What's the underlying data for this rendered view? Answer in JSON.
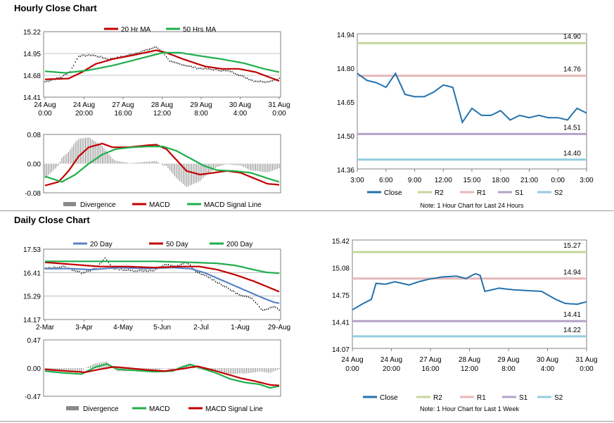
{
  "sections": {
    "hourly_title": "Hourly Close Chart",
    "daily_title": "Daily Close Chart"
  },
  "colors": {
    "black": "#000000",
    "red": "#c00000",
    "green": "#1fae4b",
    "blue": "#5a82c8",
    "close_blue": "#2472ad",
    "grey": "#8a8a8a",
    "r2": "#c4d79b",
    "r1": "#e6b8b7",
    "s1": "#b3a2c7",
    "s2": "#93cddd"
  },
  "chart_data": [
    {
      "id": "hourly-price",
      "type": "line",
      "title": "",
      "ylim": [
        14.41,
        15.22
      ],
      "yticks": [
        "15.22",
        "14.95",
        "14.68",
        "14.41"
      ],
      "xticks": [
        [
          "24 Aug",
          "0:00"
        ],
        [
          "24 Aug",
          "20:00"
        ],
        [
          "27 Aug",
          "16:00"
        ],
        [
          "28 Aug",
          "12:00"
        ],
        [
          "29 Aug",
          "8:00"
        ],
        [
          "30 Aug",
          "4:00"
        ],
        [
          "31 Aug",
          "0:00"
        ]
      ],
      "n_points": 140,
      "legend": [
        "20 Hr MA",
        "50 Hrs MA"
      ],
      "series": [
        {
          "name": "Close",
          "color": "#000000",
          "style": "bar",
          "anchors": [
            [
              0,
              14.6
            ],
            [
              10,
              14.66
            ],
            [
              15,
              14.73
            ],
            [
              20,
              14.92
            ],
            [
              28,
              14.93
            ],
            [
              38,
              14.88
            ],
            [
              48,
              14.92
            ],
            [
              60,
              14.99
            ],
            [
              66,
              15.03
            ],
            [
              70,
              14.97
            ],
            [
              74,
              14.85
            ],
            [
              80,
              14.82
            ],
            [
              90,
              14.77
            ],
            [
              100,
              14.75
            ],
            [
              110,
              14.73
            ],
            [
              118,
              14.66
            ],
            [
              124,
              14.61
            ],
            [
              132,
              14.6
            ],
            [
              139,
              14.64
            ]
          ]
        },
        {
          "name": "20 Hr MA",
          "color": "#c00000",
          "anchors": [
            [
              0,
              14.63
            ],
            [
              14,
              14.64
            ],
            [
              22,
              14.72
            ],
            [
              30,
              14.82
            ],
            [
              40,
              14.88
            ],
            [
              55,
              14.94
            ],
            [
              66,
              14.99
            ],
            [
              72,
              14.96
            ],
            [
              82,
              14.88
            ],
            [
              95,
              14.79
            ],
            [
              105,
              14.76
            ],
            [
              115,
              14.76
            ],
            [
              125,
              14.72
            ],
            [
              139,
              14.61
            ]
          ]
        },
        {
          "name": "50 Hrs MA",
          "color": "#1fae4b",
          "anchors": [
            [
              0,
              14.73
            ],
            [
              12,
              14.71
            ],
            [
              25,
              14.74
            ],
            [
              40,
              14.8
            ],
            [
              55,
              14.88
            ],
            [
              70,
              14.96
            ],
            [
              80,
              14.96
            ],
            [
              92,
              14.92
            ],
            [
              105,
              14.88
            ],
            [
              118,
              14.83
            ],
            [
              130,
              14.76
            ],
            [
              139,
              14.72
            ]
          ]
        }
      ]
    },
    {
      "id": "hourly-macd",
      "type": "line",
      "ylim": [
        -0.08,
        0.08
      ],
      "yticks": [
        "0.08",
        "0.00",
        "-0.08"
      ],
      "n_points": 140,
      "legend": [
        "Divergence",
        "MACD",
        "MACD Signal Line"
      ],
      "series": [
        {
          "name": "Divergence",
          "color": "#8a8a8a",
          "style": "histogram"
        },
        {
          "name": "MACD",
          "color": "#c00000",
          "anchors": [
            [
              0,
              -0.06
            ],
            [
              8,
              -0.05
            ],
            [
              14,
              -0.02
            ],
            [
              20,
              0.02
            ],
            [
              26,
              0.045
            ],
            [
              34,
              0.055
            ],
            [
              40,
              0.045
            ],
            [
              50,
              0.045
            ],
            [
              60,
              0.05
            ],
            [
              66,
              0.052
            ],
            [
              72,
              0.04
            ],
            [
              78,
              0.01
            ],
            [
              84,
              -0.02
            ],
            [
              92,
              -0.03
            ],
            [
              100,
              -0.025
            ],
            [
              108,
              -0.02
            ],
            [
              116,
              -0.025
            ],
            [
              124,
              -0.04
            ],
            [
              132,
              -0.055
            ],
            [
              139,
              -0.058
            ]
          ]
        },
        {
          "name": "MACD Signal Line",
          "color": "#1fae4b",
          "anchors": [
            [
              0,
              -0.035
            ],
            [
              10,
              -0.05
            ],
            [
              18,
              -0.03
            ],
            [
              26,
              0.0
            ],
            [
              34,
              0.025
            ],
            [
              42,
              0.04
            ],
            [
              52,
              0.045
            ],
            [
              62,
              0.047
            ],
            [
              70,
              0.047
            ],
            [
              78,
              0.035
            ],
            [
              86,
              0.015
            ],
            [
              94,
              -0.005
            ],
            [
              102,
              -0.018
            ],
            [
              112,
              -0.02
            ],
            [
              122,
              -0.025
            ],
            [
              132,
              -0.04
            ],
            [
              139,
              -0.05
            ]
          ]
        }
      ]
    },
    {
      "id": "hourly-pivot",
      "type": "line",
      "ylim": [
        14.36,
        14.94
      ],
      "yticks": [
        "14.94",
        "14.80",
        "14.65",
        "14.50",
        "14.36"
      ],
      "xticks": [
        "3:00",
        "6:00",
        "9:00",
        "12:00",
        "15:00",
        "18:00",
        "21:00",
        "0:00",
        "3:00"
      ],
      "close": [
        14.77,
        14.74,
        14.73,
        14.71,
        14.77,
        14.68,
        14.67,
        14.67,
        14.69,
        14.72,
        14.71,
        14.56,
        14.62,
        14.59,
        14.59,
        14.61,
        14.57,
        14.59,
        14.58,
        14.59,
        14.58,
        14.58,
        14.57,
        14.62,
        14.6
      ],
      "levels": [
        {
          "name": "R2",
          "value": 14.9,
          "label": "14.90"
        },
        {
          "name": "R1",
          "value": 14.76,
          "label": "14.76"
        },
        {
          "name": "S1",
          "value": 14.51,
          "label": "14.51"
        },
        {
          "name": "S2",
          "value": 14.4,
          "label": "14.40"
        }
      ],
      "legend": [
        "Close",
        "R2",
        "R1",
        "S1",
        "S2"
      ],
      "note": "Note: 1 Hour Chart for Last 24 Hours"
    },
    {
      "id": "daily-price",
      "type": "line",
      "ylim": [
        14.17,
        17.53
      ],
      "yticks": [
        "17.53",
        "16.41",
        "15.29",
        "14.17"
      ],
      "xticks": [
        "2-Mar",
        "3-Apr",
        "4-May",
        "5-Jun",
        "2-Jul",
        "1-Aug",
        "29-Aug"
      ],
      "n_points": 130,
      "legend": [
        "20 Day",
        "50 Day",
        "200 Day"
      ],
      "series": [
        {
          "name": "Close",
          "color": "#000000",
          "style": "bar",
          "anchors": [
            [
              0,
              16.6
            ],
            [
              10,
              16.7
            ],
            [
              20,
              16.4
            ],
            [
              28,
              16.6
            ],
            [
              33,
              17.1
            ],
            [
              38,
              16.6
            ],
            [
              48,
              16.5
            ],
            [
              60,
              16.5
            ],
            [
              66,
              16.8
            ],
            [
              72,
              16.7
            ],
            [
              78,
              16.9
            ],
            [
              84,
              16.4
            ],
            [
              90,
              16.2
            ],
            [
              96,
              15.9
            ],
            [
              102,
              15.6
            ],
            [
              108,
              15.3
            ],
            [
              114,
              15.2
            ],
            [
              120,
              14.6
            ],
            [
              126,
              14.8
            ],
            [
              129,
              14.65
            ]
          ]
        },
        {
          "name": "20 Day",
          "color": "#5a82c8",
          "anchors": [
            [
              0,
              16.6
            ],
            [
              15,
              16.6
            ],
            [
              25,
              16.55
            ],
            [
              40,
              16.65
            ],
            [
              55,
              16.6
            ],
            [
              70,
              16.65
            ],
            [
              80,
              16.6
            ],
            [
              88,
              16.4
            ],
            [
              96,
              16.1
            ],
            [
              104,
              15.8
            ],
            [
              112,
              15.5
            ],
            [
              120,
              15.2
            ],
            [
              126,
              15.0
            ],
            [
              129,
              14.95
            ]
          ]
        },
        {
          "name": "50 Day",
          "color": "#c00000",
          "anchors": [
            [
              0,
              16.9
            ],
            [
              15,
              16.8
            ],
            [
              30,
              16.7
            ],
            [
              45,
              16.7
            ],
            [
              60,
              16.65
            ],
            [
              75,
              16.7
            ],
            [
              85,
              16.7
            ],
            [
              95,
              16.55
            ],
            [
              105,
              16.3
            ],
            [
              115,
              16.0
            ],
            [
              122,
              15.75
            ],
            [
              129,
              15.5
            ]
          ]
        },
        {
          "name": "200 Day",
          "color": "#1fae4b",
          "anchors": [
            [
              0,
              16.95
            ],
            [
              20,
              16.95
            ],
            [
              40,
              16.95
            ],
            [
              60,
              16.95
            ],
            [
              80,
              16.9
            ],
            [
              95,
              16.85
            ],
            [
              105,
              16.75
            ],
            [
              115,
              16.55
            ],
            [
              122,
              16.42
            ],
            [
              129,
              16.38
            ]
          ]
        }
      ]
    },
    {
      "id": "daily-macd",
      "type": "line",
      "ylim": [
        -0.47,
        0.47
      ],
      "yticks": [
        "0.47",
        "0.00",
        "-0.47"
      ],
      "n_points": 130,
      "legend": [
        "Divergence",
        "MACD",
        "MACD Signal Line"
      ],
      "series": [
        {
          "name": "Divergence",
          "color": "#8a8a8a",
          "style": "histogram"
        },
        {
          "name": "MACD",
          "color": "#1fae4b",
          "anchors": [
            [
              0,
              -0.05
            ],
            [
              10,
              -0.08
            ],
            [
              20,
              -0.1
            ],
            [
              28,
              0.02
            ],
            [
              34,
              0.07
            ],
            [
              40,
              -0.02
            ],
            [
              50,
              -0.04
            ],
            [
              60,
              -0.06
            ],
            [
              70,
              -0.05
            ],
            [
              76,
              0.02
            ],
            [
              80,
              0.06
            ],
            [
              86,
              0.0
            ],
            [
              94,
              -0.08
            ],
            [
              102,
              -0.18
            ],
            [
              110,
              -0.24
            ],
            [
              118,
              -0.27
            ],
            [
              124,
              -0.33
            ],
            [
              129,
              -0.3
            ]
          ]
        },
        {
          "name": "MACD Signal Line",
          "color": "#c00000",
          "anchors": [
            [
              0,
              -0.02
            ],
            [
              12,
              -0.05
            ],
            [
              22,
              -0.07
            ],
            [
              30,
              -0.02
            ],
            [
              38,
              0.02
            ],
            [
              46,
              0.0
            ],
            [
              56,
              -0.03
            ],
            [
              66,
              -0.05
            ],
            [
              76,
              -0.01
            ],
            [
              84,
              0.03
            ],
            [
              92,
              -0.03
            ],
            [
              100,
              -0.1
            ],
            [
              108,
              -0.17
            ],
            [
              116,
              -0.22
            ],
            [
              124,
              -0.28
            ],
            [
              129,
              -0.29
            ]
          ]
        }
      ]
    },
    {
      "id": "daily-pivot",
      "type": "line",
      "ylim": [
        14.07,
        15.42
      ],
      "yticks": [
        "15.42",
        "15.08",
        "14.75",
        "14.41",
        "14.07"
      ],
      "xticks": [
        [
          "24 Aug",
          "0:00"
        ],
        [
          "24 Aug",
          "20:00"
        ],
        [
          "27 Aug",
          "16:00"
        ],
        [
          "28 Aug",
          "12:00"
        ],
        [
          "29 Aug",
          "8:00"
        ],
        [
          "30 Aug",
          "4:00"
        ],
        [
          "31 Aug",
          "0:00"
        ]
      ],
      "n_points": 100,
      "close_anchors": [
        [
          0,
          14.55
        ],
        [
          4,
          14.62
        ],
        [
          8,
          14.68
        ],
        [
          10,
          14.88
        ],
        [
          14,
          14.87
        ],
        [
          18,
          14.9
        ],
        [
          24,
          14.86
        ],
        [
          28,
          14.9
        ],
        [
          32,
          14.93
        ],
        [
          38,
          14.96
        ],
        [
          44,
          14.97
        ],
        [
          48,
          14.94
        ],
        [
          52,
          15.0
        ],
        [
          54,
          14.98
        ],
        [
          56,
          14.78
        ],
        [
          62,
          14.82
        ],
        [
          68,
          14.8
        ],
        [
          74,
          14.79
        ],
        [
          80,
          14.78
        ],
        [
          86,
          14.68
        ],
        [
          90,
          14.63
        ],
        [
          95,
          14.62
        ],
        [
          99,
          14.65
        ]
      ],
      "levels": [
        {
          "name": "R2",
          "value": 15.27,
          "label": "15.27"
        },
        {
          "name": "R1",
          "value": 14.94,
          "label": "14.94"
        },
        {
          "name": "S1",
          "value": 14.41,
          "label": "14.41"
        },
        {
          "name": "S2",
          "value": 14.22,
          "label": "14.22"
        }
      ],
      "legend": [
        "Close",
        "R2",
        "R1",
        "S1",
        "S2"
      ],
      "note": "Note: 1 Hour Chart for Last 1 Week"
    }
  ]
}
